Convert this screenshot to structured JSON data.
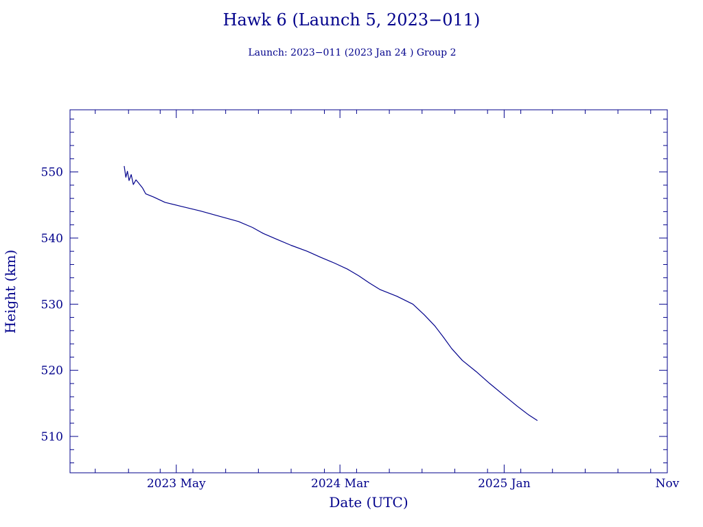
{
  "chart_data": {
    "type": "line",
    "title": "Hawk 6 (Launch 5, 2023−011)",
    "subtitle": "Launch: 2023−011  (2023 Jan 24 )  Group 2",
    "xlabel": "Date (UTC)",
    "ylabel": "Height (km)",
    "x_tick_labels": [
      "2023 May",
      "2024 Mar",
      "2025 Jan",
      "Nov"
    ],
    "x_tick_dates": [
      "2023-05-01",
      "2024-03-01",
      "2025-01-01",
      "2025-11-01"
    ],
    "xlim": [
      "2022-10-15",
      "2025-11-01"
    ],
    "y_ticks": [
      510,
      520,
      530,
      540,
      550
    ],
    "ylim": [
      504.5,
      559.4
    ],
    "grid": false,
    "color": "#00008b",
    "series": [
      {
        "name": "",
        "points": [
          [
            "2023-01-24",
            550.9
          ],
          [
            "2023-01-27",
            549.2
          ],
          [
            "2023-01-30",
            550.1
          ],
          [
            "2023-02-02",
            548.7
          ],
          [
            "2023-02-06",
            549.6
          ],
          [
            "2023-02-10",
            548.1
          ],
          [
            "2023-02-15",
            548.8
          ],
          [
            "2023-02-20",
            548.3
          ],
          [
            "2023-02-27",
            547.6
          ],
          [
            "2023-03-05",
            546.7
          ],
          [
            "2023-03-20",
            546.2
          ],
          [
            "2023-04-10",
            545.4
          ],
          [
            "2023-05-10",
            544.8
          ],
          [
            "2023-06-15",
            544.1
          ],
          [
            "2023-07-20",
            543.3
          ],
          [
            "2023-08-25",
            542.5
          ],
          [
            "2023-09-20",
            541.6
          ],
          [
            "2023-10-10",
            540.7
          ],
          [
            "2023-11-05",
            539.8
          ],
          [
            "2023-12-01",
            538.9
          ],
          [
            "2023-12-31",
            538.0
          ],
          [
            "2024-01-25",
            537.1
          ],
          [
            "2024-02-20",
            536.2
          ],
          [
            "2024-03-15",
            535.3
          ],
          [
            "2024-04-05",
            534.3
          ],
          [
            "2024-04-25",
            533.2
          ],
          [
            "2024-05-15",
            532.2
          ],
          [
            "2024-06-15",
            531.2
          ],
          [
            "2024-07-15",
            530.0
          ],
          [
            "2024-08-05",
            528.4
          ],
          [
            "2024-08-25",
            526.7
          ],
          [
            "2024-09-10",
            525.0
          ],
          [
            "2024-09-25",
            523.3
          ],
          [
            "2024-10-15",
            521.5
          ],
          [
            "2024-11-10",
            519.8
          ],
          [
            "2024-12-05",
            518.0
          ],
          [
            "2025-01-01",
            516.2
          ],
          [
            "2025-01-25",
            514.6
          ],
          [
            "2025-02-15",
            513.3
          ],
          [
            "2025-03-04",
            512.4
          ]
        ]
      }
    ]
  }
}
